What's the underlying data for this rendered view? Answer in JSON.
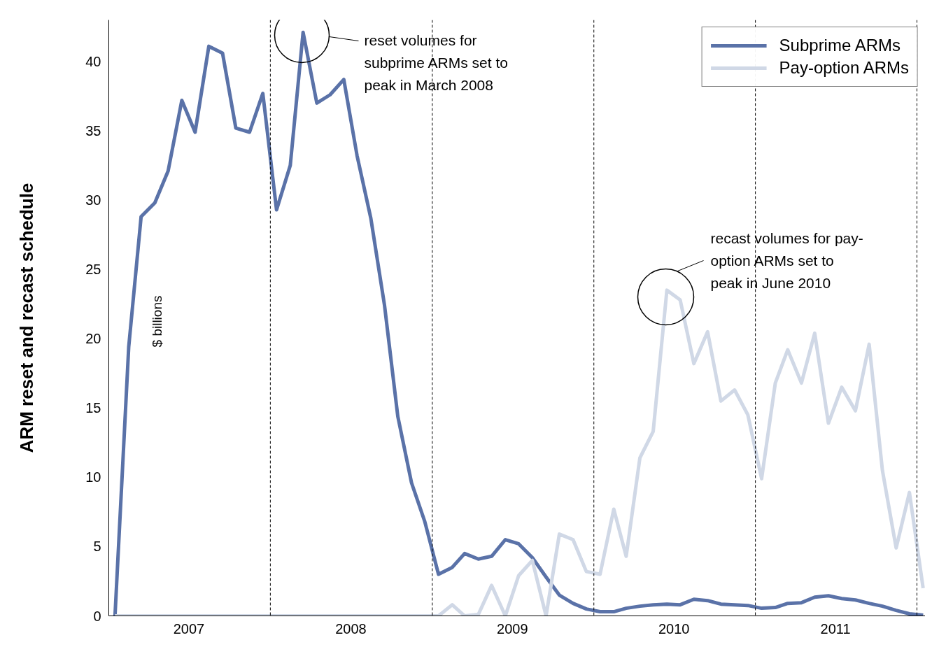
{
  "chart_data": {
    "type": "line",
    "ylabel": "ARM reset and recast schedule",
    "x": [
      "2007-01-15",
      "2007-02-15",
      "2007-03-15",
      "2007-04-15",
      "2007-05-15",
      "2007-06-15",
      "2007-07-15",
      "2007-08-15",
      "2007-09-15",
      "2007-10-15",
      "2007-11-15",
      "2007-12-15",
      "2008-01-15",
      "2008-02-15",
      "2008-03-15",
      "2008-04-15",
      "2008-05-15",
      "2008-06-15",
      "2008-07-15",
      "2008-08-15",
      "2008-09-15",
      "2008-10-15",
      "2008-11-15",
      "2008-12-15",
      "2009-01-15",
      "2009-02-15",
      "2009-03-15",
      "2009-04-15",
      "2009-05-15",
      "2009-06-15",
      "2009-07-15",
      "2009-08-15",
      "2009-09-15",
      "2009-10-15",
      "2009-11-15",
      "2009-12-15",
      "2010-01-15",
      "2010-02-15",
      "2010-03-15",
      "2010-04-15",
      "2010-05-15",
      "2010-06-15",
      "2010-07-15",
      "2010-08-15",
      "2010-09-15",
      "2010-10-15",
      "2010-11-15",
      "2010-12-15",
      "2011-01-15",
      "2011-02-15",
      "2011-03-15",
      "2011-04-15",
      "2011-05-15",
      "2011-06-15",
      "2011-07-15",
      "2011-08-15",
      "2011-09-15",
      "2011-10-15",
      "2011-11-15",
      "2011-12-15",
      "2012-01-15"
    ],
    "series": [
      {
        "name": "Subprime ARMs",
        "color": "#5a72a8",
        "values": [
          0,
          19.4,
          28.8,
          29.8,
          32.1,
          37.2,
          34.9,
          41.1,
          40.6,
          35.2,
          34.9,
          37.7,
          29.3,
          32.5,
          42.1,
          37.0,
          37.6,
          38.7,
          33.2,
          28.7,
          22.4,
          14.4,
          9.6,
          6.8,
          3.0,
          3.5,
          4.5,
          4.1,
          4.3,
          5.5,
          5.2,
          4.2,
          2.8,
          1.5,
          0.9,
          0.5,
          0.3,
          0.3,
          0.55,
          0.7,
          0.8,
          0.85,
          0.8,
          1.2,
          1.1,
          0.85,
          0.8,
          0.75,
          0.55,
          0.6,
          0.9,
          0.95,
          1.35,
          1.45,
          1.25,
          1.15,
          0.9,
          0.7,
          0.4,
          0.15,
          0.05
        ]
      },
      {
        "name": "Pay-option ARMs",
        "color": "#d0d8e6",
        "values": [
          0,
          0,
          0,
          0,
          0,
          0,
          0,
          0,
          0,
          0,
          0,
          0,
          0,
          0,
          0,
          0,
          0,
          0,
          0,
          0,
          0,
          0,
          0,
          0,
          0,
          0.8,
          0,
          0.1,
          2.2,
          0,
          2.9,
          4.0,
          0,
          5.9,
          5.5,
          3.2,
          3.0,
          7.7,
          4.3,
          11.4,
          13.3,
          23.5,
          22.8,
          18.2,
          20.5,
          15.5,
          16.3,
          14.5,
          9.9,
          16.8,
          19.2,
          16.8,
          20.4,
          13.9,
          16.5,
          14.8,
          19.6,
          10.5,
          4.9,
          8.9,
          2.0
        ]
      }
    ],
    "xlim": [
      "2007-01-01",
      "2012-01-20"
    ],
    "xticks": [
      {
        "value": "2007-07-01",
        "label": "2007"
      },
      {
        "value": "2008-07-01",
        "label": "2008"
      },
      {
        "value": "2009-07-01",
        "label": "2009"
      },
      {
        "value": "2010-07-01",
        "label": "2010"
      },
      {
        "value": "2011-07-01",
        "label": "2011"
      }
    ],
    "ylim": [
      0,
      43
    ],
    "yticks": [
      0,
      5,
      10,
      15,
      20,
      25,
      30,
      35,
      40
    ],
    "ref_lines": [
      {
        "axis": "x",
        "value": "2008-01-01",
        "color": "#000000",
        "line_style": "dashed"
      },
      {
        "axis": "x",
        "value": "2009-01-01",
        "color": "#000000",
        "line_style": "dashed"
      },
      {
        "axis": "x",
        "value": "2010-01-01",
        "color": "#000000",
        "line_style": "dashed"
      },
      {
        "axis": "x",
        "value": "2011-01-01",
        "color": "#000000",
        "line_style": "dashed"
      },
      {
        "axis": "x",
        "value": "2012-01-01",
        "color": "#000000",
        "line_style": "dashed"
      }
    ],
    "annotations": [
      "$ billions",
      "reset volumes for\nsubprime ARMs set to\npeak in March 2008",
      "recast volumes for pay-\noption ARMs set to\npeak in June 2010"
    ],
    "legend": "top right",
    "grid": false,
    "marker": "none",
    "line_style": "solid"
  }
}
